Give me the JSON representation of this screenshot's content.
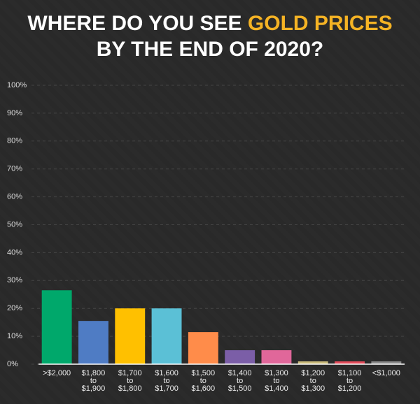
{
  "chart_data": {
    "type": "bar",
    "title": {
      "lead": "WHERE DO YOU SEE",
      "highlight": "GOLD PRICES",
      "tail": "BY THE END OF 2020?"
    },
    "categories": [
      ">$2,000",
      "$1,800\nto\n$1,900",
      "$1,700\nto\n$1,800",
      "$1,600\nto\n$1,700",
      "$1,500\nto\n$1,600",
      "$1,400\nto\n$1,500",
      "$1,300\nto\n$1,400",
      "$1,200\nto\n$1,300",
      "$1,100\nto\n$1,200",
      "<$1,000"
    ],
    "values": [
      26.5,
      15.5,
      20,
      20,
      11.5,
      5,
      5,
      1,
      1,
      1
    ],
    "colors": [
      "#00a86b",
      "#4f7cc4",
      "#ffc000",
      "#5bc0d6",
      "#ff8c4a",
      "#7b5ea7",
      "#e0679a",
      "#c8b97a",
      "#e24b5a",
      "#8a8a8a"
    ],
    "ylim": [
      0,
      100
    ],
    "yticks": [
      {
        "value": 0,
        "label": "0%"
      },
      {
        "value": 10,
        "label": "10%"
      },
      {
        "value": 20,
        "label": "20%"
      },
      {
        "value": 30,
        "label": "30%"
      },
      {
        "value": 40,
        "label": "40%"
      },
      {
        "value": 50,
        "label": "50%"
      },
      {
        "value": 60,
        "label": "60%"
      },
      {
        "value": 70,
        "label": "70%"
      },
      {
        "value": 80,
        "label": "80%"
      },
      {
        "value": 90,
        "label": "90%"
      },
      {
        "value": 100,
        "label": "100%"
      }
    ],
    "grid": true
  }
}
